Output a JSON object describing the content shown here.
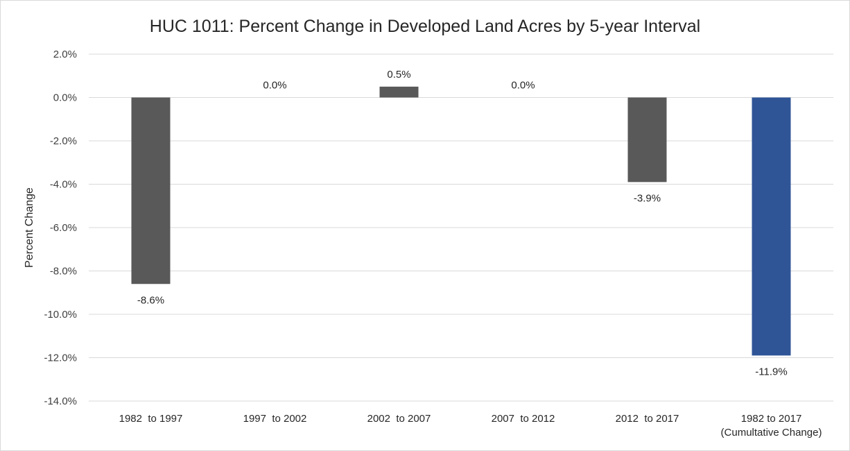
{
  "chart_data": {
    "type": "bar",
    "title": "HUC 1011: Percent Change in Developed Land Acres by 5-year Interval",
    "ylabel": "Percent Change",
    "xlabel": "",
    "ylim": [
      -14.0,
      2.0
    ],
    "ytick_step": 2.0,
    "ytick_format": "percent_1dp",
    "grid": true,
    "legend": "none",
    "categories": [
      [
        "1982  to 1997"
      ],
      [
        "1997  to 2002"
      ],
      [
        "2002  to 2007"
      ],
      [
        "2007  to 2012"
      ],
      [
        "2012  to 2017"
      ],
      [
        "1982 to 2017",
        "(Cumultative Change)"
      ]
    ],
    "values": [
      -8.6,
      0.0,
      0.5,
      0.0,
      -3.9,
      -11.9
    ],
    "data_labels": [
      "-8.6%",
      "0.0%",
      "0.5%",
      "0.0%",
      "-3.9%",
      "-11.9%"
    ],
    "colors": [
      "#595959",
      "#595959",
      "#595959",
      "#595959",
      "#595959",
      "#2f5597"
    ]
  }
}
